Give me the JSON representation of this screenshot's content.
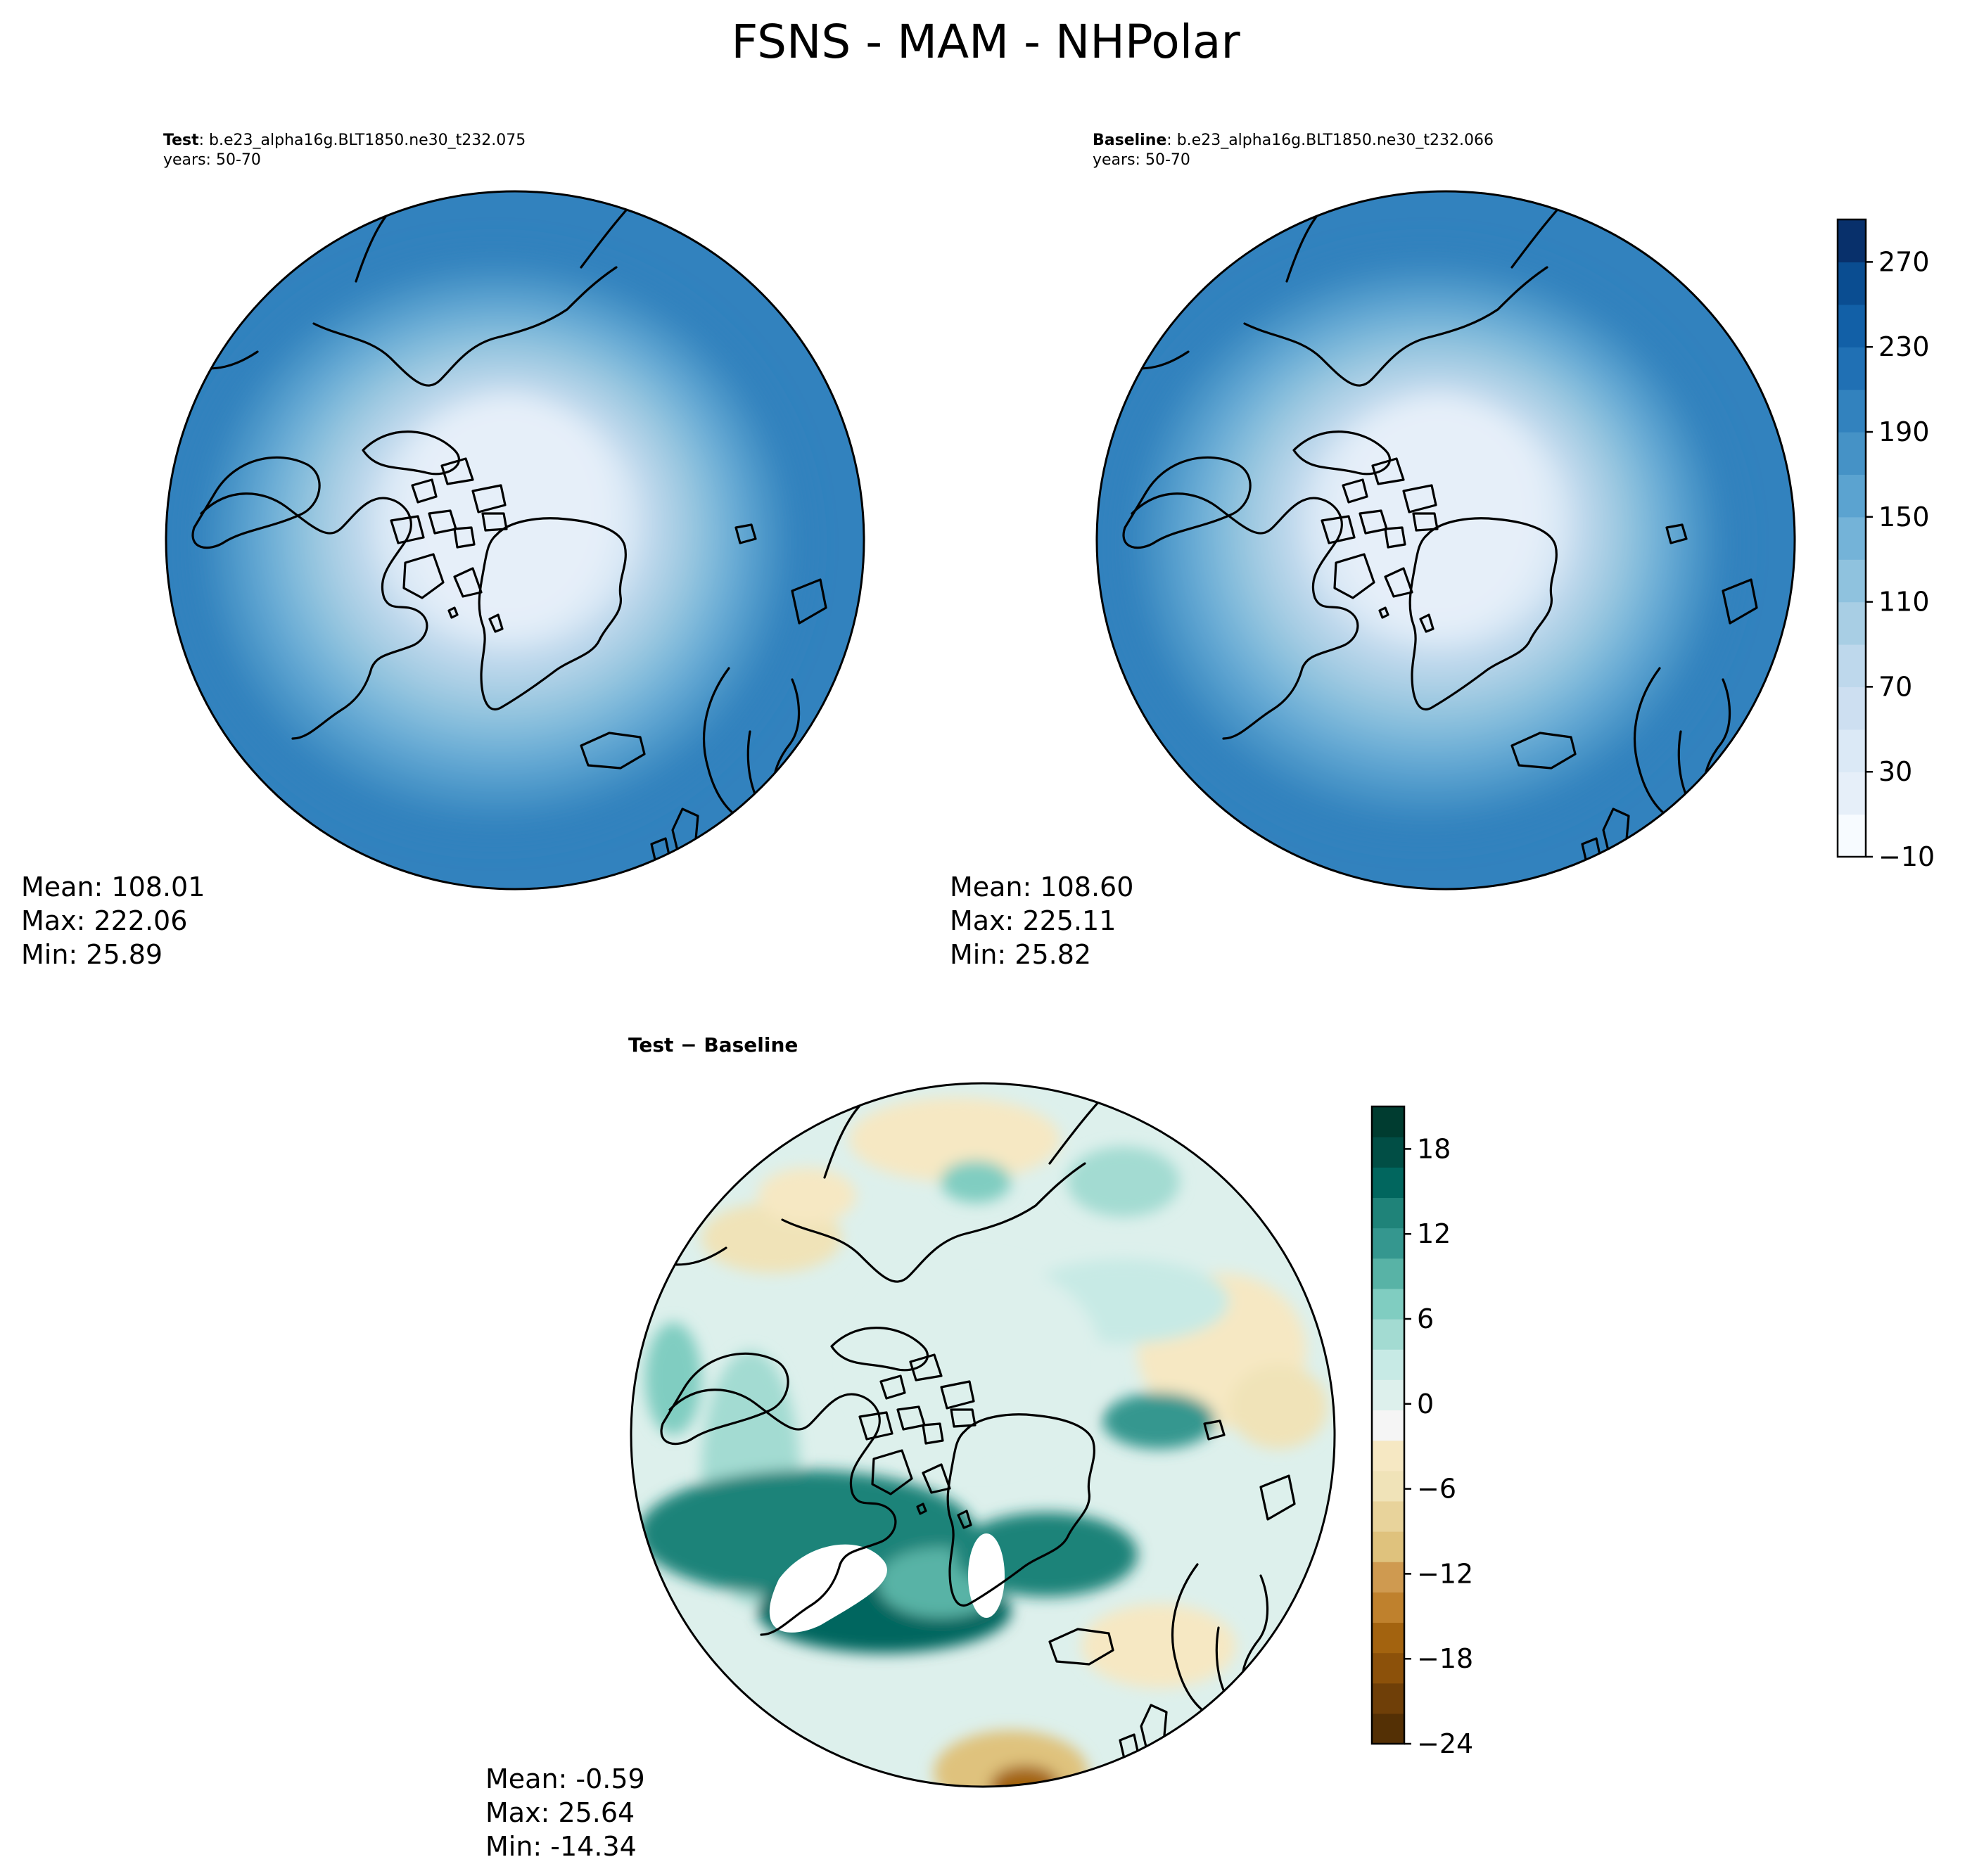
{
  "figure": {
    "title": "FSNS - MAM - NHPolar"
  },
  "chart_data": [
    {
      "type": "heatmap",
      "projection": "north polar stereographic",
      "label_bold": "Test",
      "label_rest": ": b.e23_alpha16g.BLT1850.ne30_t232.075",
      "years": "years: 50-70",
      "stats": {
        "mean": "Mean: 108.01",
        "max": "Max: 222.06",
        "min": "Min: 25.89"
      },
      "colormap": "Blues",
      "value_range": [
        -10,
        290
      ],
      "field_levels": {
        "pole": 25,
        "ring": [
          45,
          70,
          90,
          110,
          130,
          150,
          170,
          190,
          205
        ]
      }
    },
    {
      "type": "heatmap",
      "projection": "north polar stereographic",
      "label_bold": "Baseline",
      "label_rest": ": b.e23_alpha16g.BLT1850.ne30_t232.066",
      "years": "years: 50-70",
      "stats": {
        "mean": "Mean: 108.60",
        "max": "Max: 225.11",
        "min": "Min: 25.82"
      },
      "colormap": "Blues",
      "value_range": [
        -10,
        290
      ],
      "field_levels": {
        "pole": 25,
        "ring": [
          45,
          70,
          90,
          110,
          130,
          150,
          170,
          190,
          205
        ]
      }
    },
    {
      "type": "heatmap",
      "projection": "north polar stereographic",
      "label_bold": "Test − Baseline",
      "stats": {
        "mean": "Mean: -0.59",
        "max": "Max: 25.64",
        "min": "Min: -14.34"
      },
      "colormap": "BrBG",
      "value_range": [
        -24,
        21
      ],
      "field_levels": {
        "background": 0
      }
    }
  ],
  "colorbars": [
    {
      "colors": [
        "#f7fbff",
        "#e6eff9",
        "#dbe9f6",
        "#cddff1",
        "#bed8ec",
        "#a8cee4",
        "#8fc2de",
        "#74b3d8",
        "#5ba3d0",
        "#4592c6",
        "#3282be",
        "#2070b4",
        "#1260a7",
        "#0a4d91",
        "#08306b"
      ],
      "range": [
        -10,
        290
      ],
      "ticks": [
        -10,
        30,
        70,
        110,
        150,
        190,
        230,
        270
      ],
      "tick_labels": [
        "−10",
        "30",
        "70",
        "110",
        "150",
        "190",
        "230",
        "270"
      ]
    },
    {
      "colors": [
        "#543005",
        "#6f3f08",
        "#8c510a",
        "#a3630f",
        "#bf812d",
        "#cf9a50",
        "#dfc27d",
        "#e8d39b",
        "#f0e3b8",
        "#f6e8c3",
        "#f5f5f5",
        "#ddf0ec",
        "#c7eae5",
        "#a3dbd2",
        "#80cdc1",
        "#58b3a6",
        "#35978f",
        "#1f8379",
        "#01665e",
        "#014e45",
        "#003c30"
      ],
      "range": [
        -24,
        21
      ],
      "ticks": [
        -24,
        -18,
        -12,
        -6,
        0,
        6,
        12,
        18
      ],
      "tick_labels": [
        "−24",
        "−18",
        "−12",
        "−6",
        "0",
        "6",
        "12",
        "18"
      ]
    }
  ]
}
